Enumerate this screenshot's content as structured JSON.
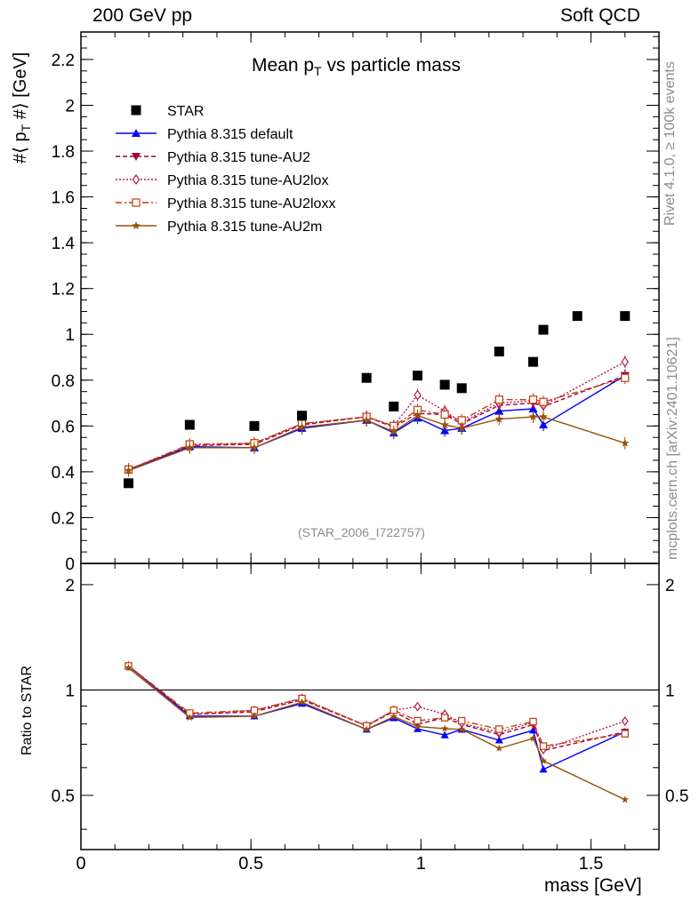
{
  "header": {
    "left": "200 GeV pp",
    "right": "Soft QCD"
  },
  "side_labels": {
    "rivet": "Rivet 4.1.0, ≥ 100k events",
    "mcplots": "mcplots.cern.ch [arXiv:2401.10621]"
  },
  "chart_data": {
    "type": "scatter",
    "title": "Mean p_T vs particle mass",
    "title_main": "Mean p",
    "title_sub": "T",
    "title_rest": " vs particle mass",
    "watermark": "(STAR_2006_I722757)",
    "xlabel": "mass [GeV]",
    "ylabel": "#⟨ p_T #⟩ [GeV]",
    "ylabel_main": "#⟨ p",
    "ylabel_sub": "T",
    "ylabel_rest": " #⟩ [GeV]",
    "ratio_ylabel": "Ratio to STAR",
    "xlim": [
      0,
      1.7
    ],
    "ylim": [
      0,
      2.32
    ],
    "ratio_ylim": [
      0.35,
      2.3
    ],
    "x_ticks": [
      "0",
      "0.5",
      "1",
      "1.5"
    ],
    "y_ticks": [
      "0",
      "0.2",
      "0.4",
      "0.6",
      "0.8",
      "1",
      "1.2",
      "1.4",
      "1.6",
      "1.8",
      "2",
      "2.2"
    ],
    "ratio_ticks": [
      "0.5",
      "1",
      "2"
    ],
    "x": [
      0.14,
      0.32,
      0.51,
      0.65,
      0.84,
      0.92,
      0.99,
      1.07,
      1.12,
      1.23,
      1.33,
      1.36,
      1.6
    ],
    "data": {
      "name": "STAR",
      "x": [
        0.14,
        0.32,
        0.51,
        0.65,
        0.84,
        0.92,
        0.99,
        1.07,
        1.12,
        1.23,
        1.33,
        1.36,
        1.46,
        1.6
      ],
      "values": [
        0.35,
        0.605,
        0.6,
        0.645,
        0.81,
        0.685,
        0.82,
        0.78,
        0.765,
        0.925,
        0.88,
        1.02,
        1.08,
        1.08
      ]
    },
    "series": [
      {
        "name": "Pythia 8.315 default",
        "color": "#0000ff",
        "marker": "triangle-up",
        "dash": "solid",
        "values": [
          0.41,
          0.51,
          0.505,
          0.59,
          0.625,
          0.57,
          0.635,
          0.58,
          0.59,
          0.665,
          0.675,
          0.605,
          0.82
        ]
      },
      {
        "name": "Pythia 8.315 tune-AU2",
        "color": "#a0003c",
        "marker": "triangle-down",
        "dash": "dashed",
        "values": [
          0.41,
          0.515,
          0.52,
          0.605,
          0.64,
          0.595,
          0.655,
          0.65,
          0.61,
          0.69,
          0.7,
          0.685,
          0.82
        ]
      },
      {
        "name": "Pythia 8.315 tune-AU2lox",
        "color": "#b01850",
        "marker": "diamond-open",
        "dash": "dotted",
        "values": [
          0.41,
          0.515,
          0.525,
          0.61,
          0.64,
          0.6,
          0.735,
          0.665,
          0.615,
          0.7,
          0.71,
          0.69,
          0.88
        ]
      },
      {
        "name": "Pythia 8.315 tune-AU2loxx",
        "color": "#c03c10",
        "marker": "square-open",
        "dash": "dashdot",
        "values": [
          0.41,
          0.52,
          0.525,
          0.61,
          0.64,
          0.6,
          0.67,
          0.65,
          0.625,
          0.715,
          0.715,
          0.705,
          0.81
        ]
      },
      {
        "name": "Pythia 8.315 tune-AU2m",
        "color": "#9a5008",
        "marker": "star",
        "dash": "solid",
        "values": [
          0.405,
          0.505,
          0.505,
          0.595,
          0.625,
          0.575,
          0.645,
          0.605,
          0.59,
          0.63,
          0.64,
          0.64,
          0.525
        ]
      }
    ]
  }
}
